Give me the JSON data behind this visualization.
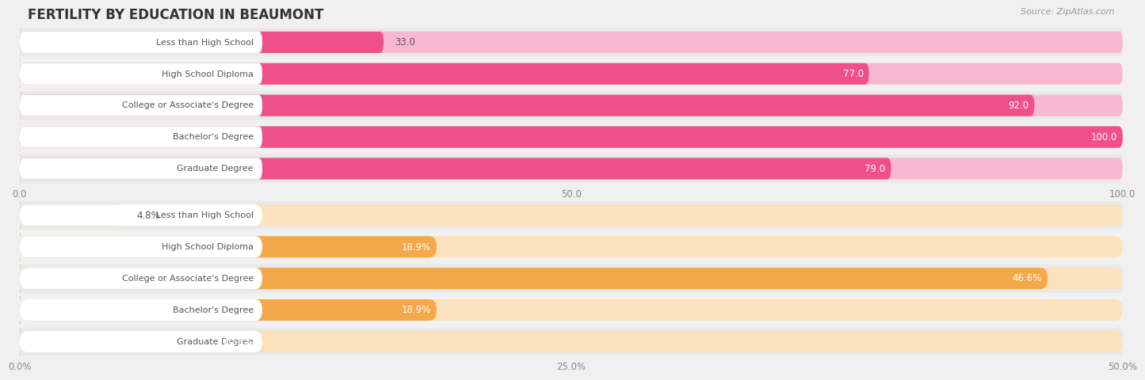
{
  "title": "FERTILITY BY EDUCATION IN BEAUMONT",
  "source": "Source: ZipAtlas.com",
  "top_chart": {
    "categories": [
      "Less than High School",
      "High School Diploma",
      "College or Associate's Degree",
      "Bachelor's Degree",
      "Graduate Degree"
    ],
    "values": [
      33.0,
      77.0,
      92.0,
      100.0,
      79.0
    ],
    "value_labels": [
      "33.0",
      "77.0",
      "92.0",
      "100.0",
      "79.0"
    ],
    "xlim": [
      0,
      100
    ],
    "xticks": [
      0.0,
      50.0,
      100.0
    ],
    "xtick_labels": [
      "0.0",
      "50.0",
      "100.0"
    ],
    "bar_color_light": "#f9b8d0",
    "bar_color_dark": "#f0508a",
    "label_text_color": "#555555",
    "bg_color": "#f0f0f0",
    "row_bg": "#e8e8e8",
    "row_bg_alt": "#eeeeee"
  },
  "bottom_chart": {
    "categories": [
      "Less than High School",
      "High School Diploma",
      "College or Associate's Degree",
      "Bachelor's Degree",
      "Graduate Degree"
    ],
    "values": [
      4.8,
      18.9,
      46.6,
      18.9,
      10.8
    ],
    "value_labels": [
      "4.8%",
      "18.9%",
      "46.6%",
      "18.9%",
      "10.8%"
    ],
    "xlim": [
      0,
      50
    ],
    "xticks": [
      0.0,
      25.0,
      50.0
    ],
    "xtick_labels": [
      "0.0%",
      "25.0%",
      "50.0%"
    ],
    "bar_color_light": "#fde0bc",
    "bar_color_dark": "#f5a84a",
    "label_text_color": "#555555",
    "bg_color": "#f0f0f0",
    "row_bg": "#e8e8e8",
    "row_bg_alt": "#eeeeee"
  },
  "fig_bg": "#f0f0f0",
  "title_color": "#333333",
  "source_color": "#999999"
}
